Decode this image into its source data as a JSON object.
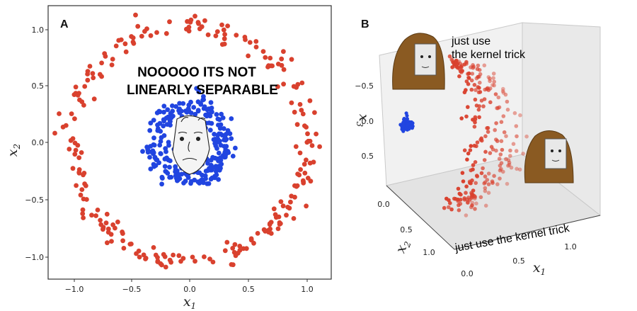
{
  "colors": {
    "outer": "#d9412e",
    "inner": "#2145e0",
    "frame": "#333333"
  },
  "chart_data": [
    {
      "type": "scatter",
      "panel_label": "A",
      "xlabel": "x1",
      "ylabel": "x2",
      "xlim": [
        -1.2,
        1.2
      ],
      "ylim": [
        -1.15,
        1.15
      ],
      "xticks": [
        "−1.0",
        "−0.5",
        "0.0",
        "0.5",
        "1.0"
      ],
      "yticks": [
        "1.0",
        "0.5",
        "0.0",
        "−0.5",
        "−1.0"
      ],
      "grid": false,
      "annotation": [
        "NOOOOO ITS NOT",
        "LINEARLY SEPARABLE"
      ],
      "series": [
        {
          "class": "outer ring",
          "color": "#d9412e",
          "radius": 1.0,
          "noise": 0.05,
          "count": 250
        },
        {
          "class": "inner ring",
          "color": "#2145e0",
          "radius": 0.3,
          "noise": 0.05,
          "count": 250
        }
      ]
    },
    {
      "type": "scatter3d",
      "panel_label": "B",
      "xlabel": "x1",
      "ylabel": "x2",
      "zlabel": "x3",
      "x_ticks": [
        "0.0",
        "0.5",
        "1.0"
      ],
      "y_ticks": [
        "0.0",
        "0.5",
        "1.0"
      ],
      "z_ticks": [
        "−0.5",
        "0.0",
        "0.5"
      ],
      "annotations": [
        "just use",
        "the kernel trick",
        "just use the kernel trick"
      ]
    }
  ]
}
